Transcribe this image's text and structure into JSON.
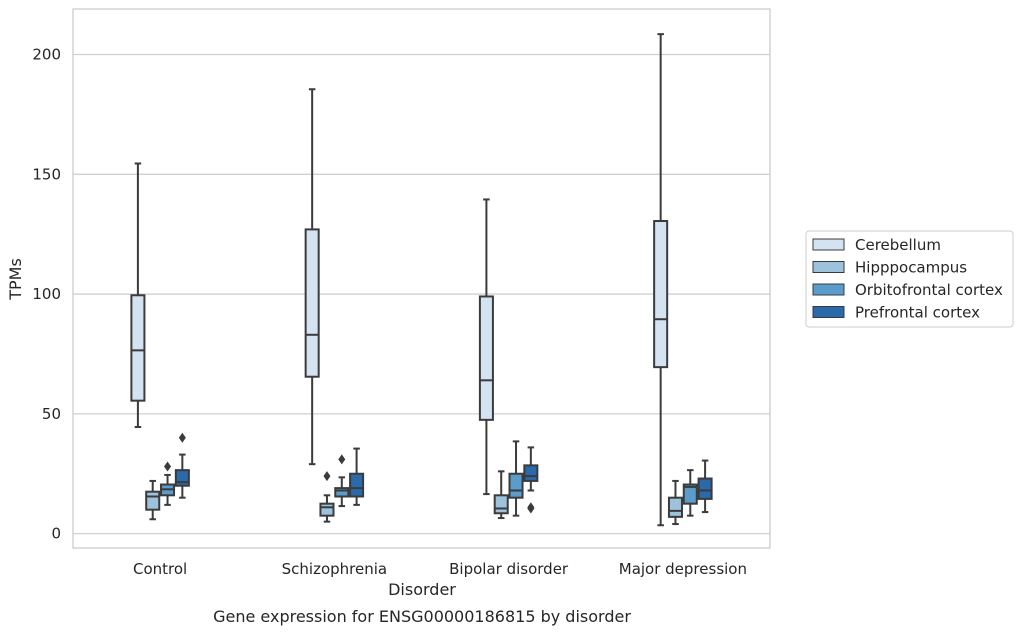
{
  "chart_data": {
    "type": "boxplot",
    "title": "Gene expression for ENSG00000186815 by disorder",
    "xlabel": "Disorder",
    "ylabel": "TPMs",
    "ylim": [
      -6,
      219
    ],
    "yticks": [
      0,
      50,
      100,
      150,
      200
    ],
    "grid": "horizontal",
    "legend_position": "right",
    "categories": [
      "Control",
      "Schizophrenia",
      "Bipolar disorder",
      "Major depression"
    ],
    "series": [
      {
        "name": "Cerebellum",
        "color": "#d4e3f2",
        "boxes": [
          {
            "whislo": 44.5,
            "q1": 55.5,
            "med": 76.5,
            "q3": 99.5,
            "whishi": 154.5,
            "fliers": []
          },
          {
            "whislo": 29,
            "q1": 65.5,
            "med": 83,
            "q3": 127,
            "whishi": 185.5,
            "fliers": []
          },
          {
            "whislo": 16.5,
            "q1": 47.5,
            "med": 64,
            "q3": 99,
            "whishi": 139.5,
            "fliers": []
          },
          {
            "whislo": 3.5,
            "q1": 69.5,
            "med": 89.5,
            "q3": 130.5,
            "whishi": 208.5,
            "fliers": []
          }
        ]
      },
      {
        "name": "Hipppocampus",
        "color": "#9cc2dd",
        "boxes": [
          {
            "whislo": 6,
            "q1": 10,
            "med": 15.5,
            "q3": 17.5,
            "whishi": 22,
            "fliers": []
          },
          {
            "whislo": 5,
            "q1": 7.5,
            "med": 11,
            "q3": 12.5,
            "whishi": 16,
            "fliers": [
              24
            ]
          },
          {
            "whislo": 6.5,
            "q1": 8.5,
            "med": 10.5,
            "q3": 16,
            "whishi": 26,
            "fliers": []
          },
          {
            "whislo": 4,
            "q1": 7,
            "med": 9.5,
            "q3": 15,
            "whishi": 22,
            "fliers": []
          }
        ]
      },
      {
        "name": "Orbitofrontal cortex",
        "color": "#5a9ccb",
        "boxes": [
          {
            "whislo": 12,
            "q1": 16,
            "med": 18.5,
            "q3": 20.5,
            "whishi": 24.5,
            "fliers": [
              28
            ]
          },
          {
            "whislo": 11.5,
            "q1": 15.5,
            "med": 18,
            "q3": 19,
            "whishi": 23.5,
            "fliers": [
              31
            ]
          },
          {
            "whislo": 7.5,
            "q1": 15,
            "med": 18,
            "q3": 25,
            "whishi": 38.5,
            "fliers": []
          },
          {
            "whislo": 7.5,
            "q1": 12.5,
            "med": 19.5,
            "q3": 20.5,
            "whishi": 26.5,
            "fliers": []
          }
        ]
      },
      {
        "name": "Prefrontal cortex",
        "color": "#2a69aa",
        "boxes": [
          {
            "whislo": 15,
            "q1": 20,
            "med": 21.5,
            "q3": 26.5,
            "whishi": 33,
            "fliers": [
              40
            ]
          },
          {
            "whislo": 12,
            "q1": 15.5,
            "med": 19,
            "q3": 25,
            "whishi": 35.5,
            "fliers": []
          },
          {
            "whislo": 18,
            "q1": 22,
            "med": 24,
            "q3": 28.5,
            "whishi": 36,
            "fliers": [
              11,
              10.5
            ]
          },
          {
            "whislo": 9,
            "q1": 14.5,
            "med": 18,
            "q3": 23,
            "whishi": 30.5,
            "fliers": []
          }
        ]
      }
    ]
  }
}
